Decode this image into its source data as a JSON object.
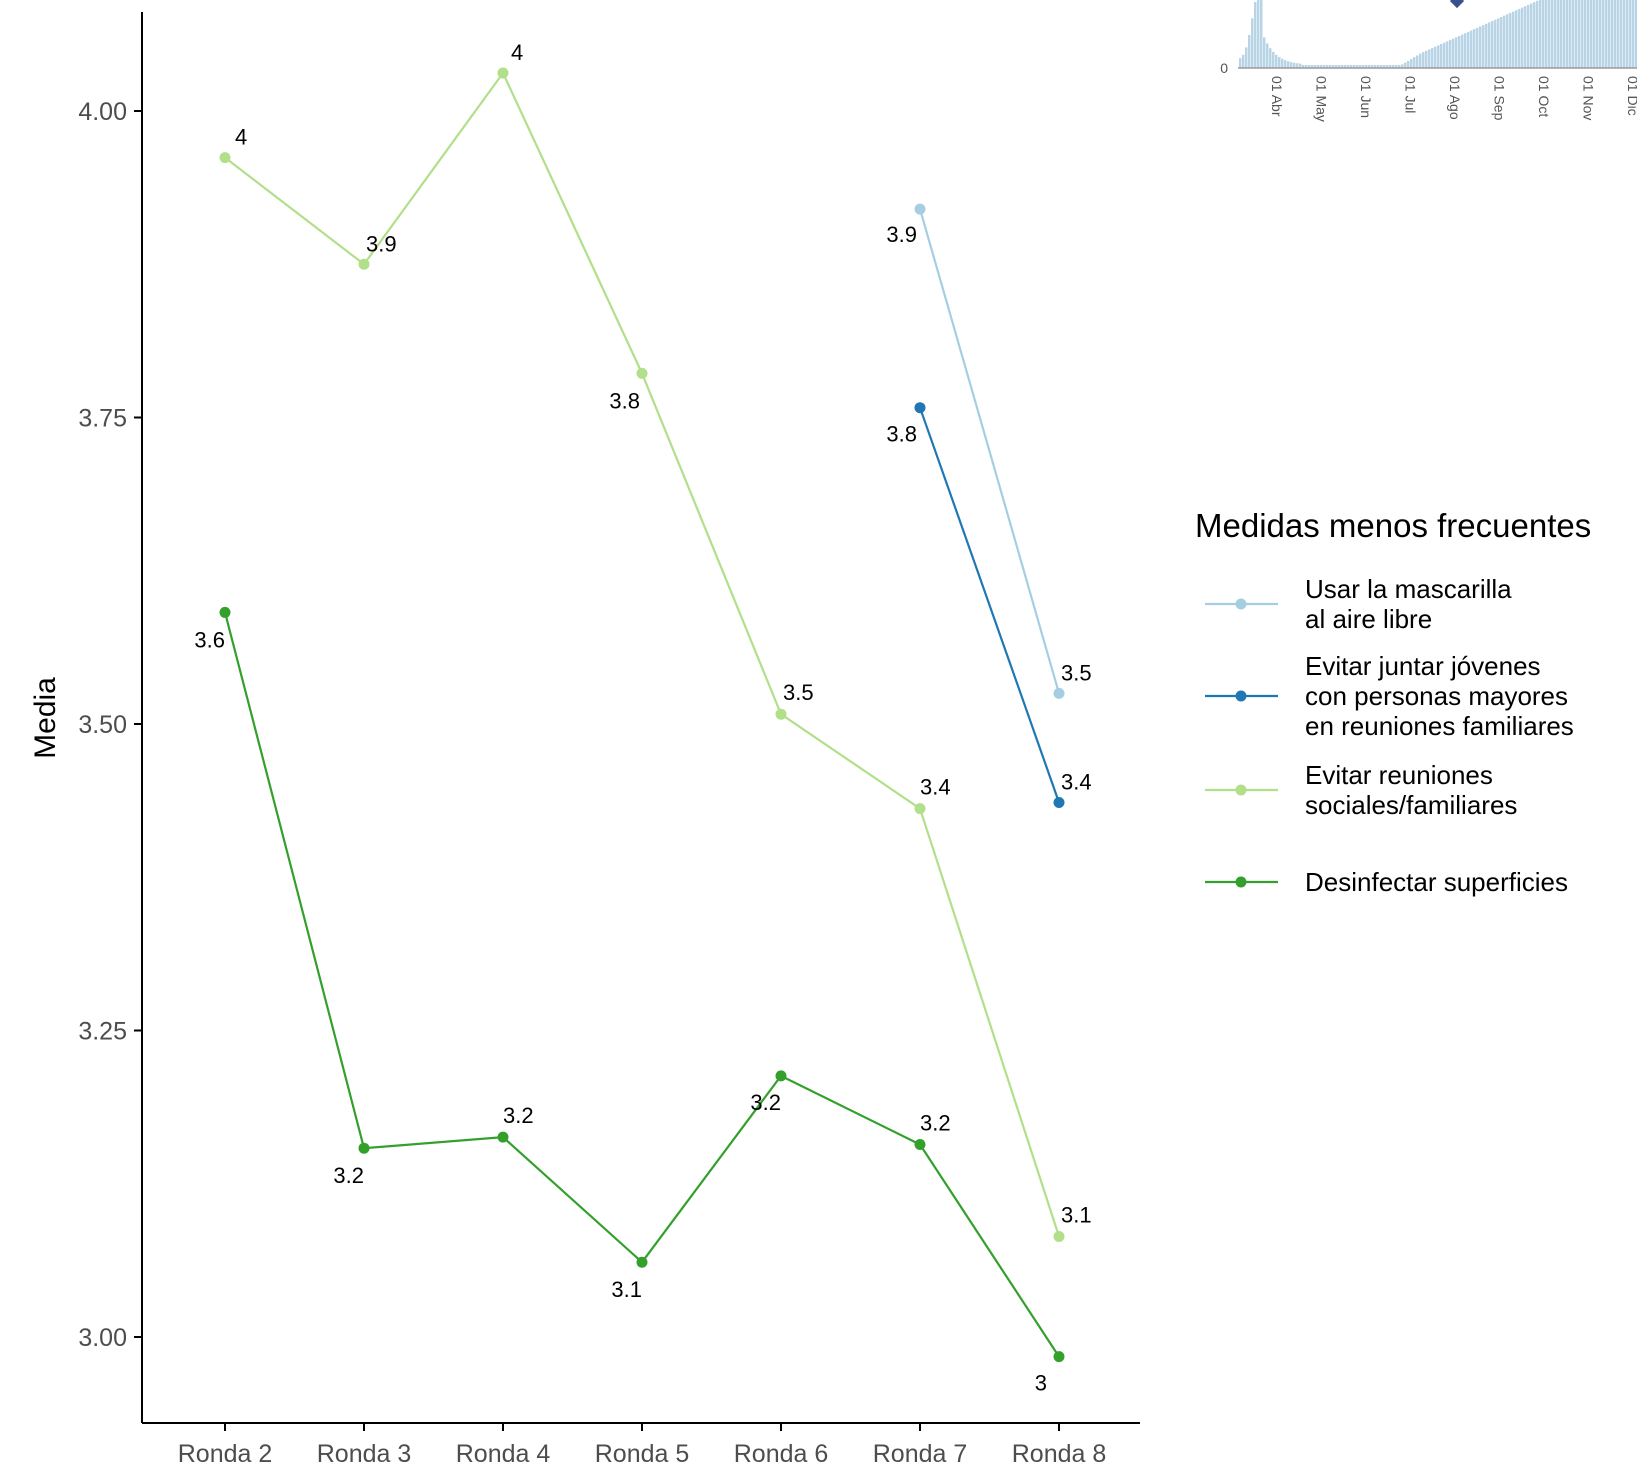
{
  "chart_data": {
    "type": "line",
    "xlabel": "",
    "ylabel": "Media",
    "categories": [
      "Ronda 2",
      "Ronda 3",
      "Ronda 4",
      "Ronda 5",
      "Ronda 6",
      "Ronda 7",
      "Ronda 8"
    ],
    "ylim": [
      2.93,
      4.08
    ],
    "yticks": [
      3.0,
      3.25,
      3.5,
      3.75,
      4.0
    ],
    "ytick_labels": [
      "3.00",
      "3.25",
      "3.50",
      "3.75",
      "4.00"
    ],
    "grid": false,
    "legend": {
      "title": "Medidas menos frecuentes",
      "position": "right"
    },
    "series": [
      {
        "name": "Usar la mascarilla al aire libre",
        "legend_lines": [
          "Usar la mascarilla",
          "al aire libre"
        ],
        "color": "#a6cee3",
        "values": [
          null,
          null,
          null,
          null,
          null,
          3.92,
          3.525
        ],
        "labels": [
          null,
          null,
          null,
          null,
          null,
          "3.9",
          "3.5"
        ]
      },
      {
        "name": "Evitar juntar jóvenes con personas mayores en reuniones familiares",
        "legend_lines": [
          "Evitar juntar jóvenes",
          "con personas mayores",
          "en reuniones familiares"
        ],
        "color": "#1f78b4",
        "values": [
          null,
          null,
          null,
          null,
          null,
          3.758,
          3.436
        ],
        "labels": [
          null,
          null,
          null,
          null,
          null,
          "3.8",
          "3.4"
        ]
      },
      {
        "name": "Evitar reuniones sociales/familiares",
        "legend_lines": [
          "Evitar reuniones",
          "sociales/familiares"
        ],
        "color": "#b2df8a",
        "values": [
          3.962,
          3.875,
          4.031,
          3.786,
          3.508,
          3.431,
          3.082
        ],
        "labels": [
          "4",
          "3.9",
          "4",
          "3.8",
          "3.5",
          "3.4",
          "3.1"
        ]
      },
      {
        "name": "Desinfectar superficies",
        "legend_lines": [
          "Desinfectar superficies"
        ],
        "color": "#33a02c",
        "values": [
          3.591,
          3.154,
          3.163,
          3.061,
          3.213,
          3.157,
          2.984
        ],
        "labels": [
          "3.6",
          "3.2",
          "3.2",
          "3.1",
          "3.2",
          "3.2",
          "3"
        ]
      }
    ]
  },
  "inset": {
    "description_free": true,
    "y_zero_label": "0",
    "x_labels": [
      "01 Abr",
      "01 May",
      "01 Jun",
      "01 Jul",
      "01 Ago",
      "01 Sep",
      "01 Oct",
      "01 Nov",
      "01 Dic"
    ],
    "bar_color": "#b8d4e6",
    "marker_color": "#3a4f8c"
  }
}
